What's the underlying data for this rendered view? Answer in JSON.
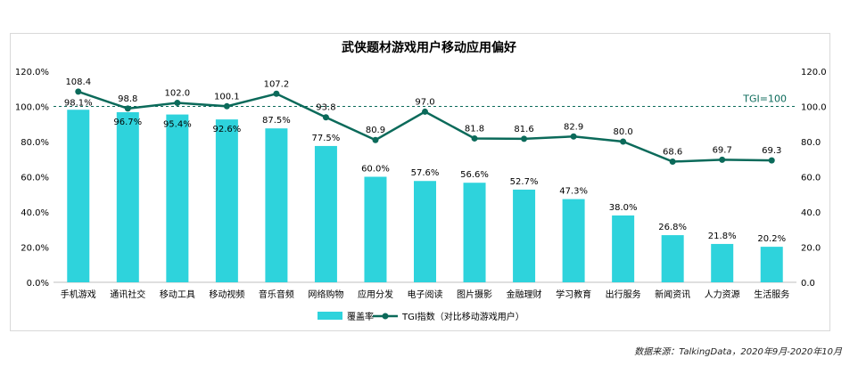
{
  "colors": {
    "bar": "#2ed3dc",
    "line": "#0b6a5a",
    "ref_line": "#0b6a5a",
    "text": "#000000",
    "frame": "#d9d9d9"
  },
  "chart_data": {
    "type": "bar",
    "title": "武侠题材游戏用户移动应用偏好",
    "categories": [
      "手机游戏",
      "通讯社交",
      "移动工具",
      "移动视频",
      "音乐音频",
      "网络购物",
      "应用分发",
      "电子阅读",
      "图片摄影",
      "金融理财",
      "学习教育",
      "出行服务",
      "新闻资讯",
      "人力资源",
      "生活服务"
    ],
    "series": [
      {
        "name": "覆盖率",
        "type": "bar",
        "axis": "left",
        "values": [
          98.1,
          96.7,
          95.4,
          92.6,
          87.5,
          77.5,
          60.0,
          57.6,
          56.6,
          52.7,
          47.3,
          38.0,
          26.8,
          21.8,
          20.2
        ],
        "labels": [
          "98.1%",
          "96.7%",
          "95.4%",
          "92.6%",
          "87.5%",
          "77.5%",
          "60.0%",
          "57.6%",
          "56.6%",
          "52.7%",
          "47.3%",
          "38.0%",
          "26.8%",
          "21.8%",
          "20.2%"
        ]
      },
      {
        "name": "TGI指数（对比移动游戏用户）",
        "type": "line",
        "axis": "right",
        "values": [
          108.4,
          98.8,
          102.0,
          100.1,
          107.2,
          93.8,
          80.9,
          97.0,
          81.8,
          81.6,
          82.9,
          80.0,
          68.6,
          69.7,
          69.3
        ],
        "labels": [
          "108.4",
          "98.8",
          "102.0",
          "100.1",
          "107.2",
          "93.8",
          "80.9",
          "97.0",
          "81.8",
          "81.6",
          "82.9",
          "80.0",
          "68.6",
          "69.7",
          "69.3"
        ]
      }
    ],
    "y_left": {
      "min": 0,
      "max": 120,
      "ticks": [
        "0.0%",
        "20.0%",
        "40.0%",
        "60.0%",
        "80.0%",
        "100.0%",
        "120.0%"
      ]
    },
    "y_right": {
      "min": 0,
      "max": 120,
      "ticks": [
        "0.0",
        "20.0",
        "40.0",
        "60.0",
        "80.0",
        "100.0",
        "120.0"
      ]
    },
    "reference_line": {
      "value": 100,
      "label": "TGI=100",
      "style": "dashed"
    },
    "legend": {
      "position": "bottom",
      "bar_label": "覆盖率",
      "line_label": "TGI指数（对比移动游戏用户）"
    },
    "grid": false
  },
  "source_note": "数据来源：TalkingData，2020年9月-2020年10月"
}
